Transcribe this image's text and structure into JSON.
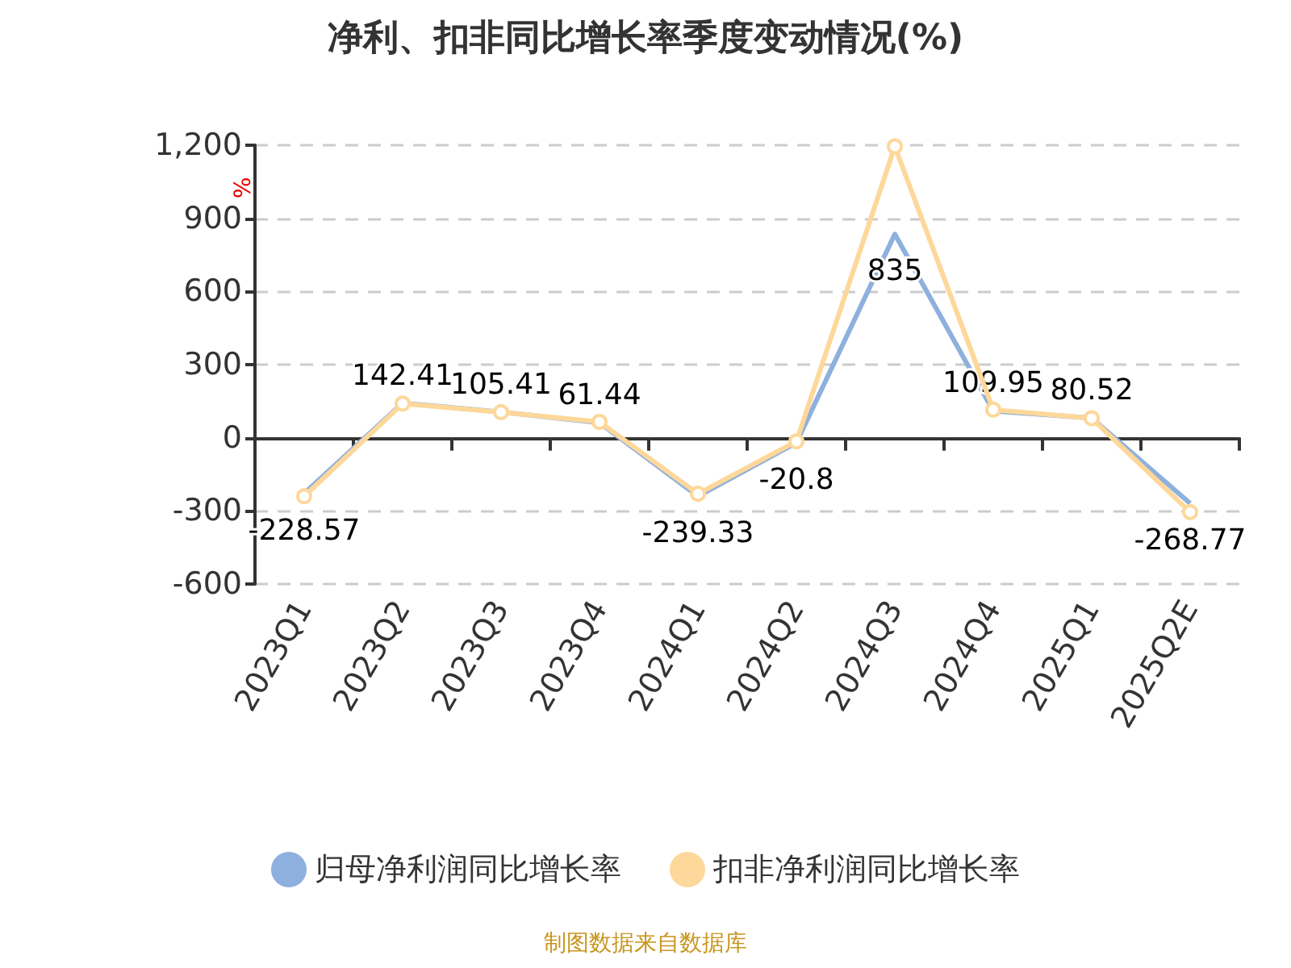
{
  "chart_data": {
    "type": "line",
    "title": "净利、扣非同比增长率季度变动情况(%)",
    "ylabel": "%",
    "categories": [
      "2023Q1",
      "2023Q2",
      "2023Q3",
      "2023Q4",
      "2024Q1",
      "2024Q2",
      "2024Q3",
      "2024Q4",
      "2025Q1",
      "2025Q2E"
    ],
    "series": [
      {
        "name": "归母净利润同比增长率",
        "color": "#8eb0de",
        "marker": "none",
        "data_labels": true,
        "values": [
          -228.57,
          142.41,
          105.41,
          61.44,
          -239.33,
          -20.8,
          835,
          109.95,
          80.52,
          -268.77
        ]
      },
      {
        "name": "扣非净利润同比增长率",
        "color": "#fdd89a",
        "marker": "circle",
        "values": [
          -240,
          140,
          105,
          65,
          -230,
          -15,
          1195,
          115,
          80,
          -305
        ]
      }
    ],
    "ylim": [
      -600,
      1200
    ],
    "yticks": [
      -600,
      -300,
      0,
      300,
      600,
      900,
      {
        "value": 1200,
        "label": "1,200"
      }
    ],
    "grid": "y",
    "legend": "bottom",
    "annotations": [
      "制图数据来自数据库"
    ]
  }
}
